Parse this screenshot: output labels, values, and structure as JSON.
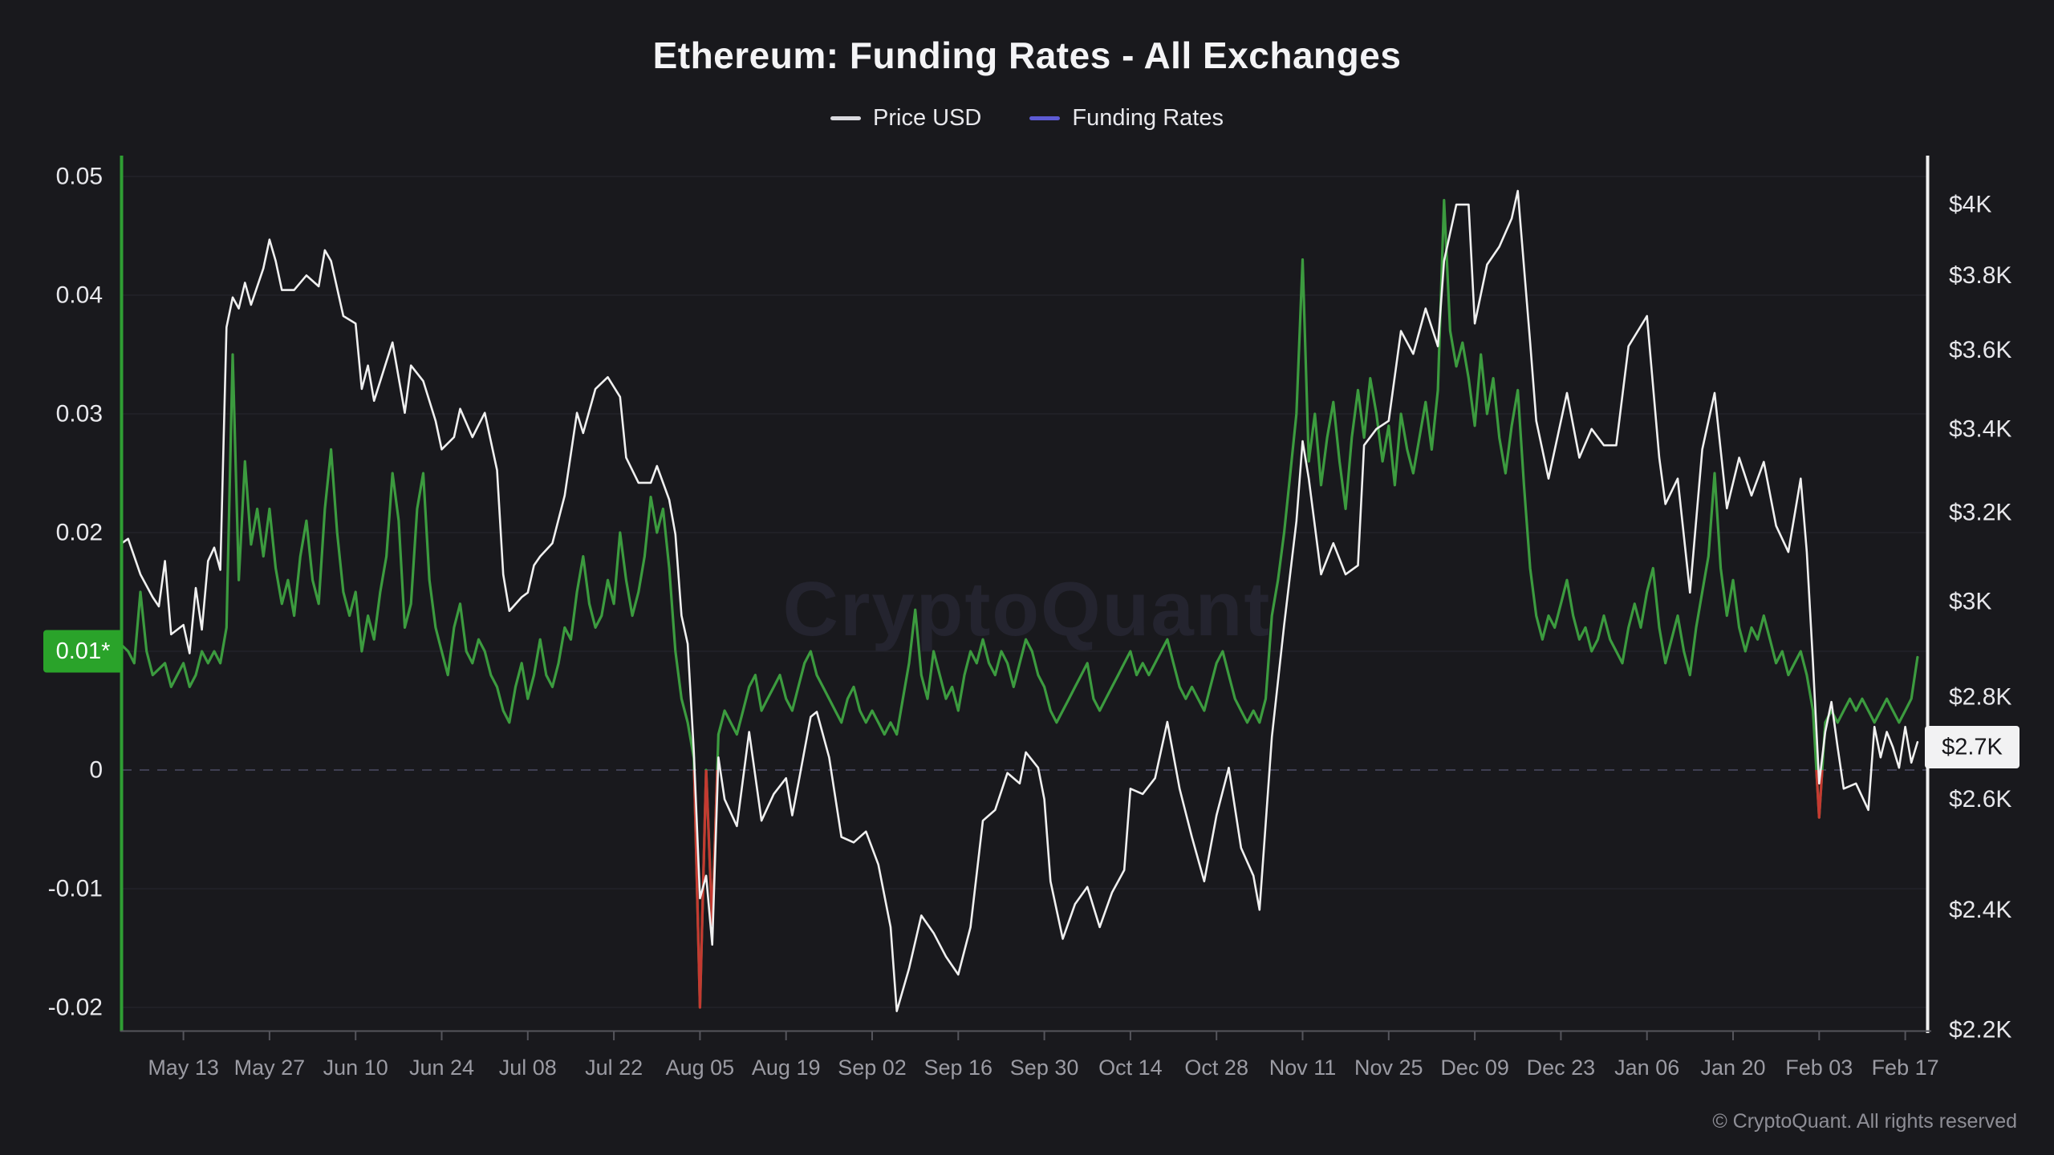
{
  "title": "Ethereum: Funding Rates - All Exchanges",
  "legend": [
    {
      "label": "Price USD",
      "color": "#d9d9de"
    },
    {
      "label": "Funding Rates",
      "color": "#5d5bd4"
    }
  ],
  "watermark": "CryptoQuant",
  "footer": "© CryptoQuant. All rights reserved",
  "badges": {
    "left": {
      "text": "0.01*",
      "value": 0.01,
      "bg": "#2aa32a"
    },
    "right": {
      "text": "$2.7K",
      "value": 2.7,
      "bg": "#f2f2f3"
    }
  },
  "colors": {
    "background": "#19191d",
    "price_line": "#f0f0f0",
    "funding_line": "#3c9b3f",
    "funding_negative": "#c43a31",
    "zero_line": "#3f3f52",
    "grid": "#232329",
    "axis_left": "#2f9e33",
    "axis_right": "#f0f0f0",
    "axis_x": "#55555c",
    "tick_text": "#e8e8ec",
    "x_tick_text": "#9b9ba3",
    "watermark": "#24242f"
  },
  "chart_data": {
    "type": "line",
    "title": "Ethereum: Funding Rates - All Exchanges",
    "grid": "horizontal faint lines at left-axis ticks; dashed line at funding 0",
    "legend_position": "top-center",
    "x_axis": {
      "epoch_day0": "2024-05-03",
      "tick_labels": [
        "May 13",
        "May 27",
        "Jun 10",
        "Jun 24",
        "Jul 08",
        "Jul 22",
        "Aug 05",
        "Aug 19",
        "Sep 02",
        "Sep 16",
        "Sep 30",
        "Oct 14",
        "Oct 28",
        "Nov 11",
        "Nov 25",
        "Dec 09",
        "Dec 23",
        "Jan 06",
        "Jan 20",
        "Feb 03",
        "Feb 17"
      ],
      "tick_day_offsets": [
        10,
        24,
        38,
        52,
        66,
        80,
        94,
        108,
        122,
        136,
        150,
        164,
        178,
        192,
        206,
        220,
        234,
        248,
        262,
        276,
        290
      ],
      "days_per_tick": 14
    },
    "left_axis": {
      "label": "Funding Rates",
      "scale": "linear",
      "range": [
        -0.022,
        0.0514
      ],
      "tick_values": [
        0.05,
        0.04,
        0.03,
        0.02,
        0.01,
        0,
        -0.01,
        -0.02
      ],
      "tick_labels": [
        "0.05",
        "0.04",
        "0.03",
        "0.02",
        "0.01",
        "0",
        "-0.01",
        "-0.02"
      ],
      "badge_value": 0.01,
      "badge_label": "0.01*"
    },
    "right_axis": {
      "label": "Price USD (thousands)",
      "scale": "log",
      "range": [
        2.199,
        4.131
      ],
      "tick_values": [
        4,
        3.8,
        3.6,
        3.4,
        3.2,
        3,
        2.8,
        2.6,
        2.4,
        2.2
      ],
      "tick_labels": [
        "$4K",
        "$3.8K",
        "$3.6K",
        "$3.4K",
        "$3.2K",
        "$3K",
        "$2.8K",
        "$2.6K",
        "$2.4K",
        "$2.2K"
      ],
      "badge_value": 2.7,
      "badge_label": "$2.7K"
    },
    "series": [
      {
        "name": "Price USD",
        "axis": "right",
        "color": "#f0f0f0",
        "unit": "USD thousands",
        "x_days": [
          0,
          1,
          3,
          5,
          6,
          7,
          8,
          10,
          11,
          12,
          13,
          14,
          15,
          16,
          17,
          18,
          19,
          20,
          21,
          23,
          24,
          25,
          26,
          28,
          30,
          32,
          33,
          34,
          36,
          38,
          39,
          40,
          41,
          43,
          44,
          46,
          47,
          49,
          51,
          52,
          54,
          55,
          57,
          59,
          61,
          62,
          63,
          65,
          66,
          67,
          68,
          70,
          72,
          74,
          75,
          77,
          79,
          81,
          82,
          84,
          86,
          87,
          89,
          90,
          91,
          92,
          93,
          94,
          95,
          96,
          97,
          98,
          100,
          102,
          104,
          106,
          108,
          109,
          110,
          112,
          113,
          115,
          117,
          119,
          121,
          123,
          125,
          126,
          128,
          130,
          132,
          134,
          136,
          138,
          140,
          142,
          144,
          146,
          147,
          149,
          150,
          151,
          153,
          155,
          157,
          159,
          161,
          163,
          164,
          166,
          168,
          170,
          172,
          174,
          176,
          178,
          180,
          182,
          184,
          185,
          187,
          189,
          191,
          192,
          193,
          195,
          197,
          199,
          201,
          202,
          204,
          206,
          208,
          210,
          212,
          214,
          215,
          217,
          219,
          220,
          222,
          224,
          226,
          227,
          229,
          230,
          232,
          235,
          237,
          239,
          241,
          243,
          245,
          248,
          250,
          251,
          253,
          255,
          257,
          259,
          261,
          263,
          265,
          267,
          269,
          271,
          273,
          274,
          275,
          276,
          277,
          278,
          279,
          280,
          282,
          284,
          285,
          286,
          287,
          288,
          289,
          290,
          291,
          292
        ],
        "values": [
          3.13,
          3.14,
          3.06,
          3.01,
          2.99,
          3.09,
          2.93,
          2.95,
          2.89,
          3.03,
          2.94,
          3.09,
          3.12,
          3.07,
          3.66,
          3.74,
          3.71,
          3.78,
          3.72,
          3.82,
          3.9,
          3.84,
          3.76,
          3.76,
          3.8,
          3.77,
          3.87,
          3.84,
          3.69,
          3.67,
          3.5,
          3.56,
          3.47,
          3.57,
          3.62,
          3.44,
          3.56,
          3.52,
          3.42,
          3.35,
          3.38,
          3.45,
          3.38,
          3.44,
          3.3,
          3.06,
          2.98,
          3.01,
          3.02,
          3.08,
          3.1,
          3.13,
          3.24,
          3.44,
          3.39,
          3.5,
          3.53,
          3.48,
          3.33,
          3.27,
          3.27,
          3.31,
          3.23,
          3.15,
          2.97,
          2.91,
          2.69,
          2.42,
          2.46,
          2.34,
          2.68,
          2.6,
          2.55,
          2.73,
          2.56,
          2.61,
          2.64,
          2.57,
          2.63,
          2.76,
          2.77,
          2.68,
          2.53,
          2.52,
          2.54,
          2.48,
          2.37,
          2.23,
          2.3,
          2.39,
          2.36,
          2.32,
          2.29,
          2.37,
          2.56,
          2.58,
          2.65,
          2.63,
          2.69,
          2.66,
          2.6,
          2.45,
          2.35,
          2.41,
          2.44,
          2.37,
          2.43,
          2.47,
          2.62,
          2.61,
          2.64,
          2.75,
          2.62,
          2.53,
          2.45,
          2.57,
          2.66,
          2.51,
          2.46,
          2.4,
          2.72,
          2.95,
          3.18,
          3.37,
          3.28,
          3.06,
          3.13,
          3.06,
          3.08,
          3.36,
          3.4,
          3.42,
          3.65,
          3.59,
          3.71,
          3.61,
          3.84,
          4.0,
          4.0,
          3.67,
          3.83,
          3.88,
          3.96,
          4.04,
          3.62,
          3.42,
          3.28,
          3.49,
          3.33,
          3.4,
          3.36,
          3.36,
          3.61,
          3.69,
          3.33,
          3.22,
          3.28,
          3.02,
          3.35,
          3.49,
          3.21,
          3.33,
          3.24,
          3.32,
          3.17,
          3.11,
          3.28,
          3.11,
          2.87,
          2.63,
          2.73,
          2.79,
          2.7,
          2.62,
          2.63,
          2.58,
          2.74,
          2.68,
          2.73,
          2.7,
          2.66,
          2.74,
          2.67,
          2.71
        ]
      },
      {
        "name": "Funding Rates",
        "axis": "left",
        "color": "#3c9b3f",
        "negative_color": "#c43a31",
        "x_days": [
          0,
          1,
          2,
          3,
          4,
          5,
          7,
          8,
          10,
          11,
          12,
          13,
          14,
          15,
          16,
          17,
          18,
          19,
          20,
          21,
          22,
          23,
          24,
          25,
          26,
          27,
          28,
          29,
          30,
          31,
          32,
          33,
          34,
          35,
          36,
          37,
          38,
          39,
          40,
          41,
          42,
          43,
          44,
          45,
          46,
          47,
          48,
          49,
          50,
          51,
          52,
          53,
          54,
          55,
          56,
          57,
          58,
          59,
          60,
          61,
          62,
          63,
          64,
          65,
          66,
          67,
          68,
          69,
          70,
          71,
          72,
          73,
          74,
          75,
          76,
          77,
          78,
          79,
          80,
          81,
          82,
          83,
          84,
          85,
          86,
          87,
          88,
          89,
          90,
          91,
          92,
          93,
          94,
          95,
          96,
          97,
          98,
          99,
          100,
          101,
          102,
          103,
          104,
          105,
          106,
          107,
          108,
          109,
          110,
          111,
          112,
          113,
          114,
          115,
          116,
          117,
          118,
          119,
          120,
          121,
          122,
          123,
          124,
          125,
          126,
          127,
          128,
          129,
          130,
          131,
          132,
          133,
          134,
          135,
          136,
          137,
          138,
          139,
          140,
          141,
          142,
          143,
          144,
          145,
          146,
          147,
          148,
          149,
          150,
          151,
          152,
          153,
          154,
          155,
          156,
          157,
          158,
          159,
          160,
          161,
          162,
          163,
          164,
          165,
          166,
          167,
          168,
          169,
          170,
          171,
          172,
          173,
          174,
          175,
          176,
          177,
          178,
          179,
          180,
          181,
          182,
          183,
          184,
          185,
          186,
          187,
          188,
          189,
          190,
          191,
          192,
          193,
          194,
          195,
          196,
          197,
          198,
          199,
          200,
          201,
          202,
          203,
          204,
          205,
          206,
          207,
          208,
          209,
          210,
          211,
          212,
          213,
          214,
          215,
          216,
          217,
          218,
          219,
          220,
          221,
          222,
          223,
          224,
          225,
          226,
          227,
          228,
          229,
          230,
          231,
          232,
          233,
          234,
          235,
          236,
          237,
          238,
          239,
          240,
          241,
          242,
          243,
          244,
          245,
          246,
          247,
          248,
          249,
          250,
          251,
          252,
          253,
          254,
          255,
          256,
          257,
          258,
          259,
          260,
          261,
          262,
          263,
          264,
          265,
          266,
          267,
          268,
          269,
          270,
          271,
          272,
          273,
          274,
          275,
          276,
          277,
          278,
          279,
          280,
          281,
          282,
          283,
          284,
          285,
          286,
          287,
          288,
          289,
          290,
          291,
          292
        ],
        "values": [
          0.0105,
          0.01,
          0.009,
          0.015,
          0.01,
          0.008,
          0.009,
          0.007,
          0.009,
          0.007,
          0.008,
          0.01,
          0.009,
          0.01,
          0.009,
          0.012,
          0.035,
          0.016,
          0.026,
          0.019,
          0.022,
          0.018,
          0.022,
          0.017,
          0.014,
          0.016,
          0.013,
          0.018,
          0.021,
          0.016,
          0.014,
          0.022,
          0.027,
          0.02,
          0.015,
          0.013,
          0.015,
          0.01,
          0.013,
          0.011,
          0.015,
          0.018,
          0.025,
          0.021,
          0.012,
          0.014,
          0.022,
          0.025,
          0.016,
          0.012,
          0.01,
          0.008,
          0.012,
          0.014,
          0.01,
          0.009,
          0.011,
          0.01,
          0.008,
          0.007,
          0.005,
          0.004,
          0.007,
          0.009,
          0.006,
          0.008,
          0.011,
          0.008,
          0.007,
          0.009,
          0.012,
          0.011,
          0.015,
          0.018,
          0.014,
          0.012,
          0.013,
          0.016,
          0.014,
          0.02,
          0.016,
          0.013,
          0.015,
          0.018,
          0.023,
          0.02,
          0.022,
          0.017,
          0.01,
          0.006,
          0.004,
          0.001,
          -0.02,
          0.0,
          -0.013,
          0.003,
          0.005,
          0.004,
          0.003,
          0.005,
          0.007,
          0.008,
          0.005,
          0.006,
          0.007,
          0.008,
          0.006,
          0.005,
          0.007,
          0.009,
          0.01,
          0.008,
          0.007,
          0.006,
          0.005,
          0.004,
          0.006,
          0.007,
          0.005,
          0.004,
          0.005,
          0.004,
          0.003,
          0.004,
          0.003,
          0.006,
          0.009,
          0.0135,
          0.008,
          0.006,
          0.01,
          0.008,
          0.006,
          0.007,
          0.005,
          0.008,
          0.01,
          0.009,
          0.011,
          0.009,
          0.008,
          0.01,
          0.009,
          0.007,
          0.009,
          0.011,
          0.01,
          0.008,
          0.007,
          0.005,
          0.004,
          0.005,
          0.006,
          0.007,
          0.008,
          0.009,
          0.006,
          0.005,
          0.006,
          0.007,
          0.008,
          0.009,
          0.01,
          0.008,
          0.009,
          0.008,
          0.009,
          0.01,
          0.011,
          0.009,
          0.007,
          0.006,
          0.007,
          0.006,
          0.005,
          0.007,
          0.009,
          0.01,
          0.008,
          0.006,
          0.005,
          0.004,
          0.005,
          0.004,
          0.006,
          0.013,
          0.016,
          0.02,
          0.025,
          0.03,
          0.043,
          0.026,
          0.03,
          0.024,
          0.028,
          0.031,
          0.026,
          0.022,
          0.028,
          0.032,
          0.028,
          0.033,
          0.03,
          0.026,
          0.029,
          0.024,
          0.03,
          0.027,
          0.025,
          0.028,
          0.031,
          0.027,
          0.032,
          0.048,
          0.037,
          0.034,
          0.036,
          0.033,
          0.029,
          0.035,
          0.03,
          0.033,
          0.028,
          0.025,
          0.029,
          0.032,
          0.024,
          0.017,
          0.013,
          0.011,
          0.013,
          0.012,
          0.014,
          0.016,
          0.013,
          0.011,
          0.012,
          0.01,
          0.011,
          0.013,
          0.011,
          0.01,
          0.009,
          0.012,
          0.014,
          0.012,
          0.015,
          0.017,
          0.012,
          0.009,
          0.011,
          0.013,
          0.01,
          0.008,
          0.012,
          0.015,
          0.018,
          0.025,
          0.017,
          0.013,
          0.016,
          0.012,
          0.01,
          0.012,
          0.011,
          0.013,
          0.011,
          0.009,
          0.01,
          0.008,
          0.009,
          0.01,
          0.008,
          0.005,
          -0.004,
          0.004,
          0.005,
          0.004,
          0.005,
          0.006,
          0.005,
          0.006,
          0.005,
          0.004,
          0.005,
          0.006,
          0.005,
          0.004,
          0.005,
          0.006,
          0.0095
        ]
      }
    ]
  }
}
